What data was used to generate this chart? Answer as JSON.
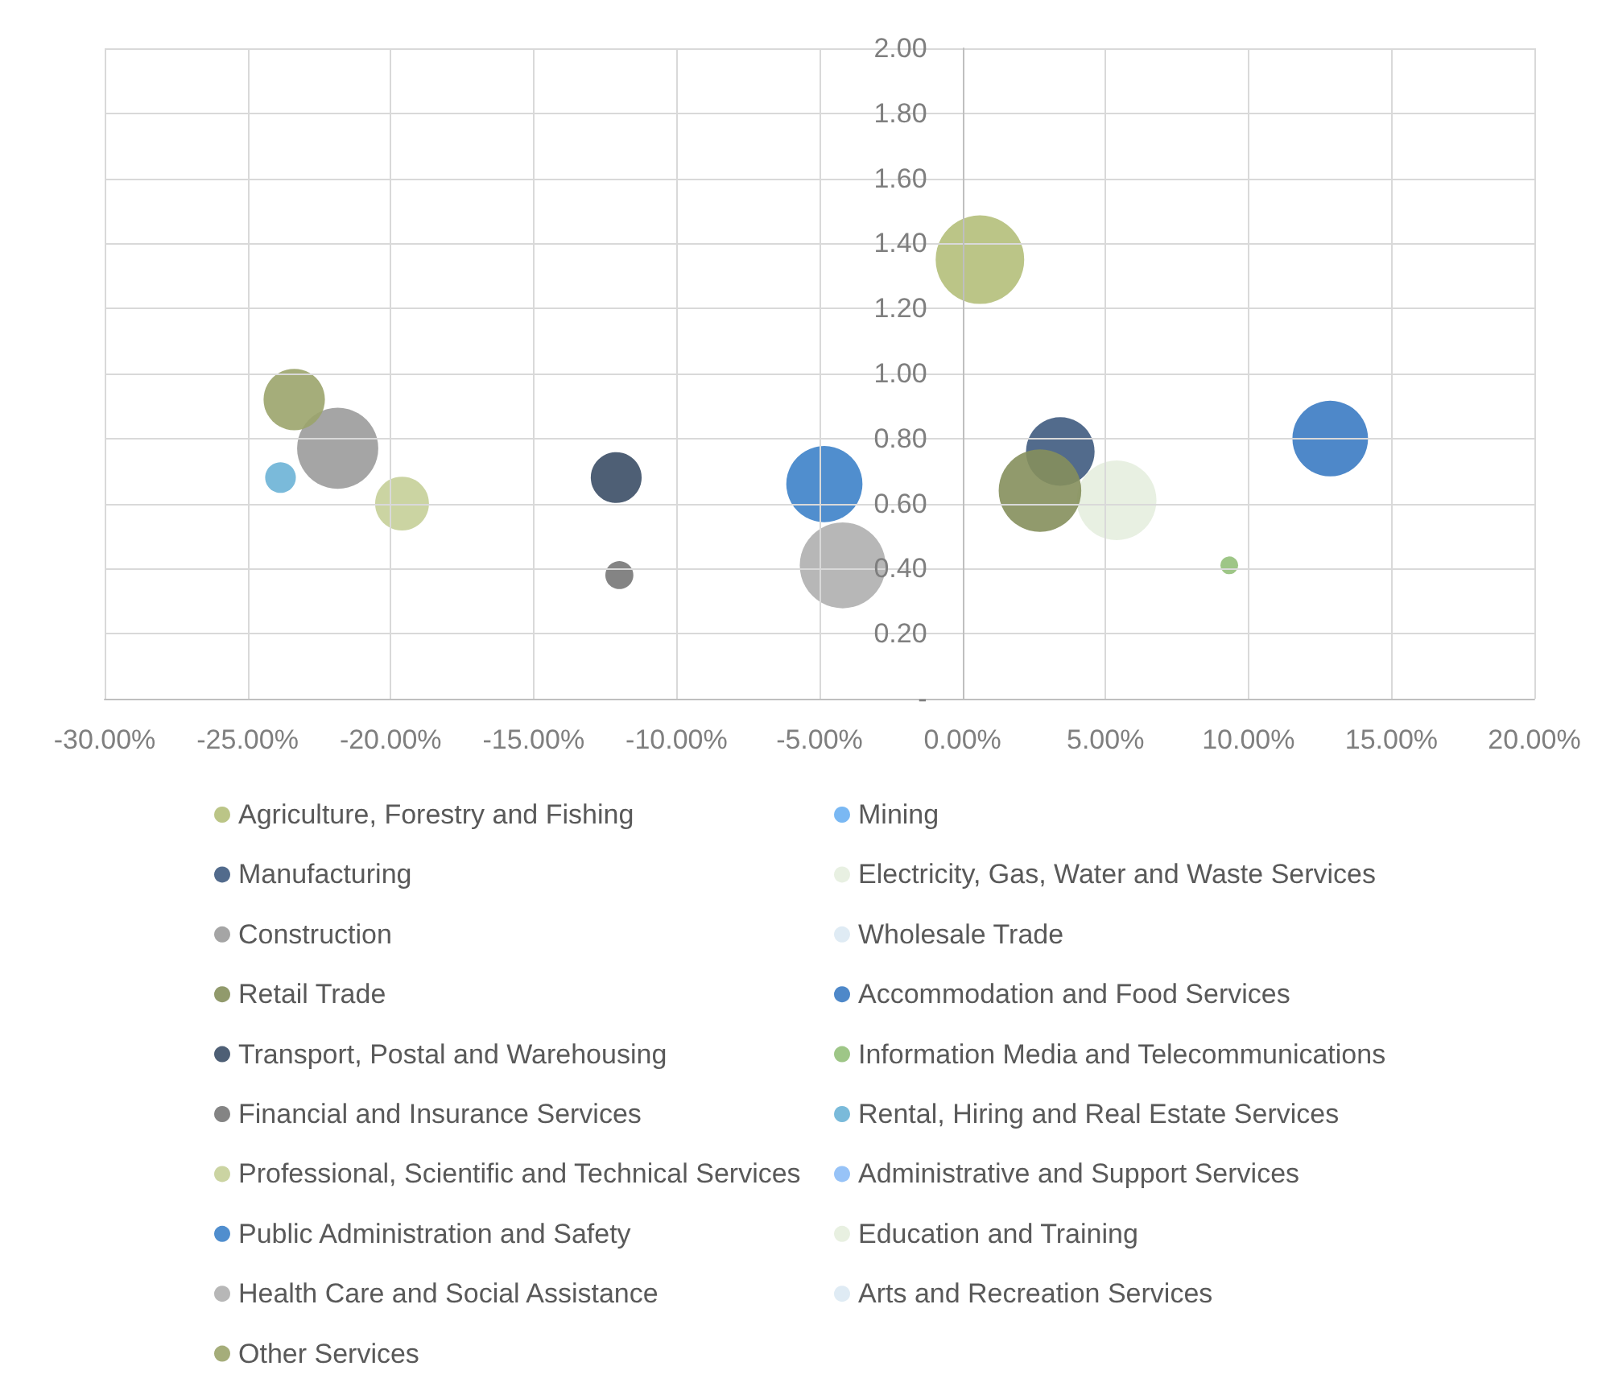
{
  "chart_data": {
    "type": "bubble",
    "xlim": [
      -30,
      20
    ],
    "xticks": [
      {
        "value": -30,
        "label": "-30.00%"
      },
      {
        "value": -25,
        "label": "-25.00%"
      },
      {
        "value": -20,
        "label": "-20.00%"
      },
      {
        "value": -15,
        "label": "-15.00%"
      },
      {
        "value": -10,
        "label": "-10.00%"
      },
      {
        "value": -5,
        "label": "-5.00%"
      },
      {
        "value": 0,
        "label": "0.00%"
      },
      {
        "value": 5,
        "label": "5.00%"
      },
      {
        "value": 10,
        "label": "10.00%"
      },
      {
        "value": 15,
        "label": "15.00%"
      },
      {
        "value": 20,
        "label": "20.00%"
      }
    ],
    "ylim": [
      0,
      2
    ],
    "yticks": [
      {
        "value": 0,
        "label": "-"
      },
      {
        "value": 0.2,
        "label": "0.20"
      },
      {
        "value": 0.4,
        "label": "0.40"
      },
      {
        "value": 0.6,
        "label": "0.60"
      },
      {
        "value": 0.8,
        "label": "0.80"
      },
      {
        "value": 1,
        "label": "1.00"
      },
      {
        "value": 1.2,
        "label": "1.20"
      },
      {
        "value": 1.4,
        "label": "1.40"
      },
      {
        "value": 1.6,
        "label": "1.60"
      },
      {
        "value": 1.8,
        "label": "1.80"
      },
      {
        "value": 2,
        "label": "2.00"
      }
    ],
    "grid": true,
    "legend": "bottom",
    "marker": "circle",
    "series": [
      {
        "name": "Agriculture, Forestry and Fishing",
        "color": "#b4bf7a",
        "x": [
          0.61
        ],
        "values": [
          1.35
        ],
        "sizes": [
          1
        ]
      },
      {
        "name": "Mining",
        "color": "#6cb0f2",
        "x": [
          null
        ],
        "values": [
          null
        ],
        "sizes": [
          null
        ]
      },
      {
        "name": "Manufacturing",
        "color": "#3f5b80",
        "x": [
          3.42
        ],
        "values": [
          0.76
        ],
        "sizes": [
          0.6
        ]
      },
      {
        "name": "Electricity, Gas, Water and Waste Services",
        "color": "#e5eedf",
        "x": [
          5.39
        ],
        "values": [
          0.61
        ],
        "sizes": [
          0.81
        ]
      },
      {
        "name": "Construction",
        "color": "#9b9b9b",
        "x": [
          -21.85
        ],
        "values": [
          0.77
        ],
        "sizes": [
          0.84
        ]
      },
      {
        "name": "Wholesale Trade",
        "color": "#dbe9f3",
        "x": [
          null
        ],
        "values": [
          null
        ],
        "sizes": [
          null
        ]
      },
      {
        "name": "Retail Trade",
        "color": "#858f5c",
        "x": [
          2.71
        ],
        "values": [
          0.64
        ],
        "sizes": [
          0.87
        ]
      },
      {
        "name": "Accommodation and Food Services",
        "color": "#3b7bc3",
        "x": [
          12.86
        ],
        "values": [
          0.8
        ],
        "sizes": [
          0.73
        ]
      },
      {
        "name": "Transport, Postal and Warehousing",
        "color": "#3b4e66",
        "x": [
          -12.11
        ],
        "values": [
          0.68
        ],
        "sizes": [
          0.33
        ]
      },
      {
        "name": "Information Media and Telecommunications",
        "color": "#93c07a",
        "x": [
          9.33
        ],
        "values": [
          0.41
        ],
        "sizes": [
          0.04
        ]
      },
      {
        "name": "Financial and Insurance Services",
        "color": "#777777",
        "x": [
          -12.0
        ],
        "values": [
          0.38
        ],
        "sizes": [
          0.1
        ]
      },
      {
        "name": "Rental, Hiring and Real Estate Services",
        "color": "#6cb2d6",
        "x": [
          -23.85
        ],
        "values": [
          0.68
        ],
        "sizes": [
          0.12
        ]
      },
      {
        "name": "Professional, Scientific and Technical Services",
        "color": "#c5cf98",
        "x": [
          -19.6
        ],
        "values": [
          0.6
        ],
        "sizes": [
          0.37
        ]
      },
      {
        "name": "Administrative and Support Services",
        "color": "#8cbdf6",
        "x": [
          null
        ],
        "values": [
          null
        ],
        "sizes": [
          null
        ]
      },
      {
        "name": "Public Administration and Safety",
        "color": "#3d82c9",
        "x": [
          -4.83
        ],
        "values": [
          0.66
        ],
        "sizes": [
          0.74
        ]
      },
      {
        "name": "Education and Training",
        "color": "#e6eede",
        "x": [
          null
        ],
        "values": [
          null
        ],
        "sizes": [
          null
        ]
      },
      {
        "name": "Health Care and Social Assistance",
        "color": "#afafaf",
        "x": [
          -4.19
        ],
        "values": [
          0.41
        ],
        "sizes": [
          0.94
        ]
      },
      {
        "name": "Arts and Recreation Services",
        "color": "#dce9f3",
        "x": [
          null
        ],
        "values": [
          null
        ],
        "sizes": [
          null
        ]
      },
      {
        "name": "Other Services",
        "color": "#9ba46b",
        "x": [
          -23.37
        ],
        "values": [
          0.92
        ],
        "sizes": [
          0.48
        ]
      }
    ]
  }
}
